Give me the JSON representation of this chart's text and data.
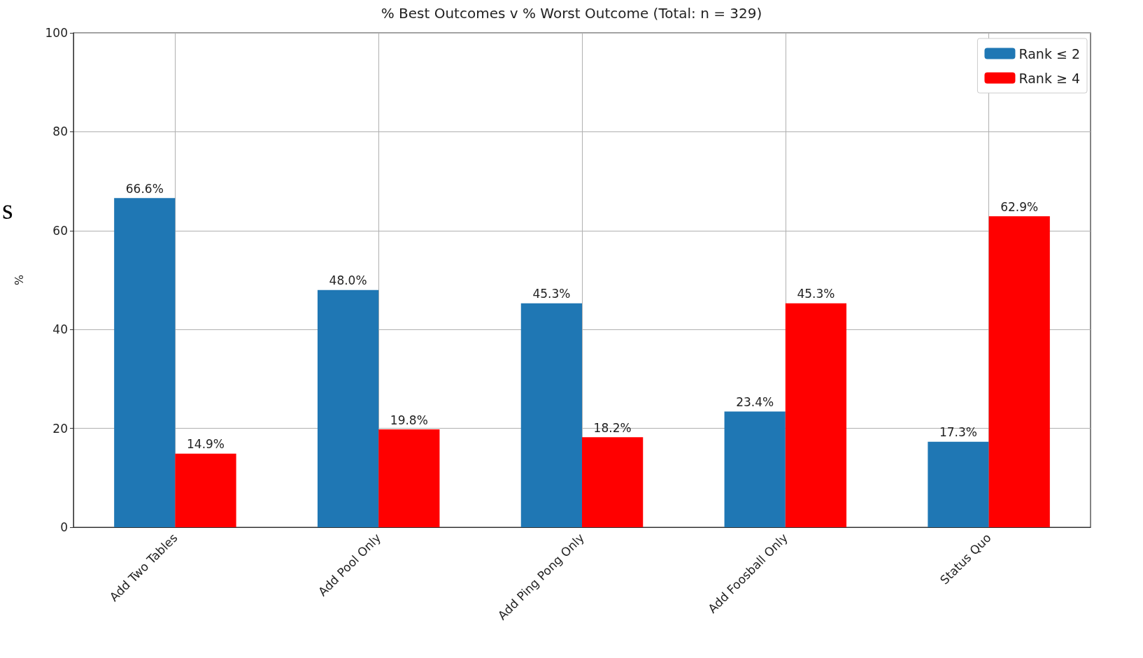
{
  "chart_data": {
    "type": "bar",
    "title": "% Best Outcomes v % Worst Outcome (Total: n = 329)",
    "ylabel": "%",
    "categories": [
      "Add Two Tables",
      "Add Pool Only",
      "Add Ping Pong Only",
      "Add Foosball Only",
      "Status Quo"
    ],
    "series": [
      {
        "name": "Rank ≤ 2",
        "color": "#1f77b4",
        "values": [
          66.6,
          48.0,
          45.3,
          23.4,
          17.3
        ],
        "value_labels": [
          "66.6%",
          "48.0%",
          "45.3%",
          "23.4%",
          "17.3%"
        ]
      },
      {
        "name": "Rank ≥ 4",
        "color": "#ff0000",
        "values": [
          14.9,
          19.8,
          18.2,
          45.3,
          62.9
        ],
        "value_labels": [
          "14.9%",
          "19.8%",
          "18.2%",
          "45.3%",
          "62.9%"
        ]
      }
    ],
    "ylim": [
      0,
      100
    ],
    "yticks": [
      0,
      20,
      40,
      60,
      80,
      100
    ],
    "grid": true,
    "legend": "top right",
    "annotations": [
      "s"
    ]
  }
}
